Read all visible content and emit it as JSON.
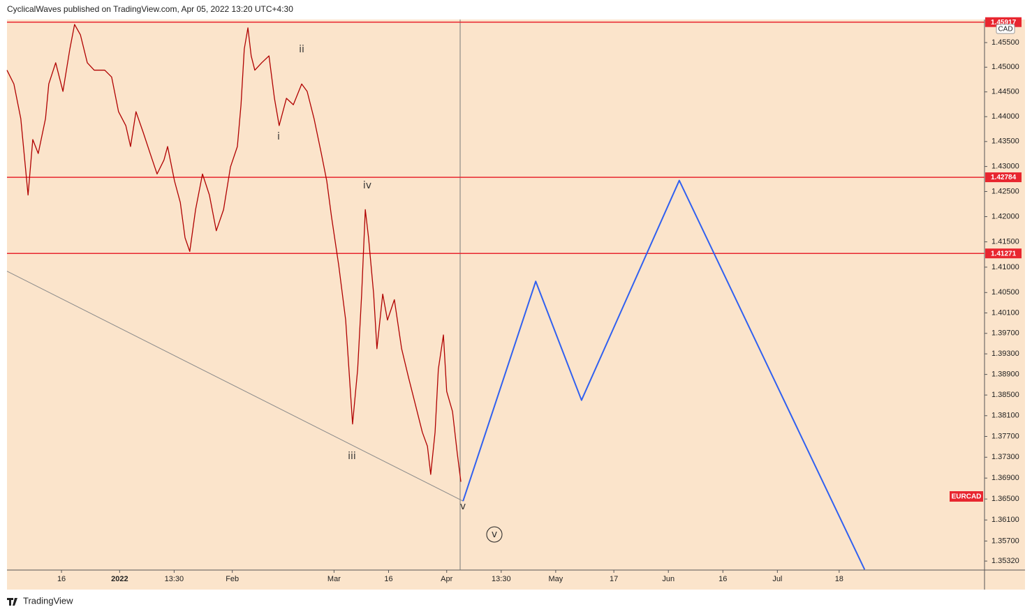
{
  "header": "CyclicalWaves published on TradingView.com, Apr 05, 2022 13:20 UTC+4:30",
  "footer": "TradingView",
  "chart_data": {
    "type": "line",
    "currency": "CAD",
    "log_scale": true,
    "xlim": [
      -31,
      238
    ],
    "ylim": [
      1.3515,
      1.4597
    ],
    "xticks": [
      {
        "value": -16,
        "label": "16"
      },
      {
        "value": 0,
        "label": "2022"
      },
      {
        "value": 15,
        "label": "13:30"
      },
      {
        "value": 31,
        "label": "Feb"
      },
      {
        "value": 59,
        "label": "Mar"
      },
      {
        "value": 74,
        "label": "16"
      },
      {
        "value": 90,
        "label": "Apr"
      },
      {
        "value": 105,
        "label": "13:30"
      },
      {
        "value": 120,
        "label": "May"
      },
      {
        "value": 136,
        "label": "17"
      },
      {
        "value": 151,
        "label": "Jun"
      },
      {
        "value": 166,
        "label": "16"
      },
      {
        "value": 181,
        "label": "Jul"
      },
      {
        "value": 198,
        "label": "18"
      }
    ],
    "yticks": [
      {
        "value": 1.455,
        "label": "1.45500"
      },
      {
        "value": 1.45,
        "label": "1.45000"
      },
      {
        "value": 1.445,
        "label": "1.44500"
      },
      {
        "value": 1.44,
        "label": "1.44000"
      },
      {
        "value": 1.435,
        "label": "1.43500"
      },
      {
        "value": 1.43,
        "label": "1.43000"
      },
      {
        "value": 1.425,
        "label": "1.42500"
      },
      {
        "value": 1.42,
        "label": "1.42000"
      },
      {
        "value": 1.415,
        "label": "1.41500"
      },
      {
        "value": 1.41,
        "label": "1.41000"
      },
      {
        "value": 1.405,
        "label": "1.40500"
      },
      {
        "value": 1.401,
        "label": "1.40100"
      },
      {
        "value": 1.397,
        "label": "1.39700"
      },
      {
        "value": 1.393,
        "label": "1.39300"
      },
      {
        "value": 1.389,
        "label": "1.38900"
      },
      {
        "value": 1.385,
        "label": "1.38500"
      },
      {
        "value": 1.381,
        "label": "1.38100"
      },
      {
        "value": 1.377,
        "label": "1.37700"
      },
      {
        "value": 1.373,
        "label": "1.37300"
      },
      {
        "value": 1.369,
        "label": "1.36900"
      },
      {
        "value": 1.365,
        "label": "1.36500"
      },
      {
        "value": 1.361,
        "label": "1.36100"
      },
      {
        "value": 1.357,
        "label": "1.35700"
      },
      {
        "value": 1.3532,
        "label": "1.35320"
      }
    ],
    "levels": [
      1.45917,
      1.42784,
      1.41271
    ],
    "level_color": "#e8262f",
    "series": [
      {
        "name": "EURCAD",
        "color": "#b00000",
        "x": [
          -31,
          -29.1,
          -27.2,
          -25.2,
          -23.9,
          -22.4,
          -20.4,
          -19.5,
          -17.6,
          -15.6,
          -13.7,
          -12.4,
          -10.8,
          -8.9,
          -7.0,
          -4.1,
          -2.2,
          -0.3,
          1.7,
          3.0,
          4.5,
          6.5,
          8.4,
          10.3,
          12.2,
          13.2,
          15.1,
          16.7,
          18.0,
          19.3,
          20.9,
          22.8,
          24.7,
          26.6,
          28.6,
          30.5,
          32.4,
          33.4,
          34.3,
          35.3,
          36.2,
          37.2,
          39.1,
          41.1,
          42.6,
          43.9,
          45.9,
          47.8,
          50.1,
          51.6,
          53.5,
          55.5,
          57.0,
          58.3,
          60.3,
          62.2,
          64.1,
          65.5,
          66.6,
          67.6,
          68.5,
          69.9,
          70.8,
          72.4,
          73.7,
          75.6,
          77.6,
          79.5,
          81.4,
          83.3,
          84.7,
          85.6,
          86.8,
          87.7,
          89.1,
          90.0,
          91.6,
          92.9,
          93.9
        ],
        "values": [
          1.4494,
          1.4466,
          1.4396,
          1.4243,
          1.4354,
          1.4326,
          1.4396,
          1.4466,
          1.4509,
          1.4451,
          1.4537,
          1.4587,
          1.4566,
          1.4509,
          1.4494,
          1.4494,
          1.448,
          1.441,
          1.4382,
          1.434,
          1.441,
          1.4368,
          1.4326,
          1.4285,
          1.4313,
          1.434,
          1.4271,
          1.4228,
          1.4158,
          1.4131,
          1.4214,
          1.4285,
          1.4243,
          1.4172,
          1.4214,
          1.4299,
          1.434,
          1.4424,
          1.4537,
          1.458,
          1.4523,
          1.4494,
          1.4509,
          1.4523,
          1.4437,
          1.4382,
          1.4437,
          1.4424,
          1.4466,
          1.4451,
          1.4396,
          1.4326,
          1.4271,
          1.42,
          1.4103,
          1.3996,
          1.3794,
          1.39,
          1.4047,
          1.4214,
          1.4158,
          1.4047,
          1.394,
          1.4047,
          1.3996,
          1.4036,
          1.394,
          1.3884,
          1.3831,
          1.3778,
          1.3751,
          1.3697,
          1.3778,
          1.39,
          1.3967,
          1.3857,
          1.3818,
          1.3738,
          1.3683
        ]
      },
      {
        "color": "#8a8a8a",
        "x": [
          -31,
          94.5
        ],
        "values": [
          1.4092,
          1.3646
        ]
      },
      {
        "color": "#3060f0",
        "x": [
          94.5,
          114.5,
          127.1,
          154.0,
          205.0
        ],
        "values": [
          1.3646,
          1.4072,
          1.384,
          1.4272,
          1.3516
        ]
      }
    ],
    "annotations": [
      "ii",
      "i",
      "iv",
      "iii",
      "v",
      "v"
    ]
  }
}
